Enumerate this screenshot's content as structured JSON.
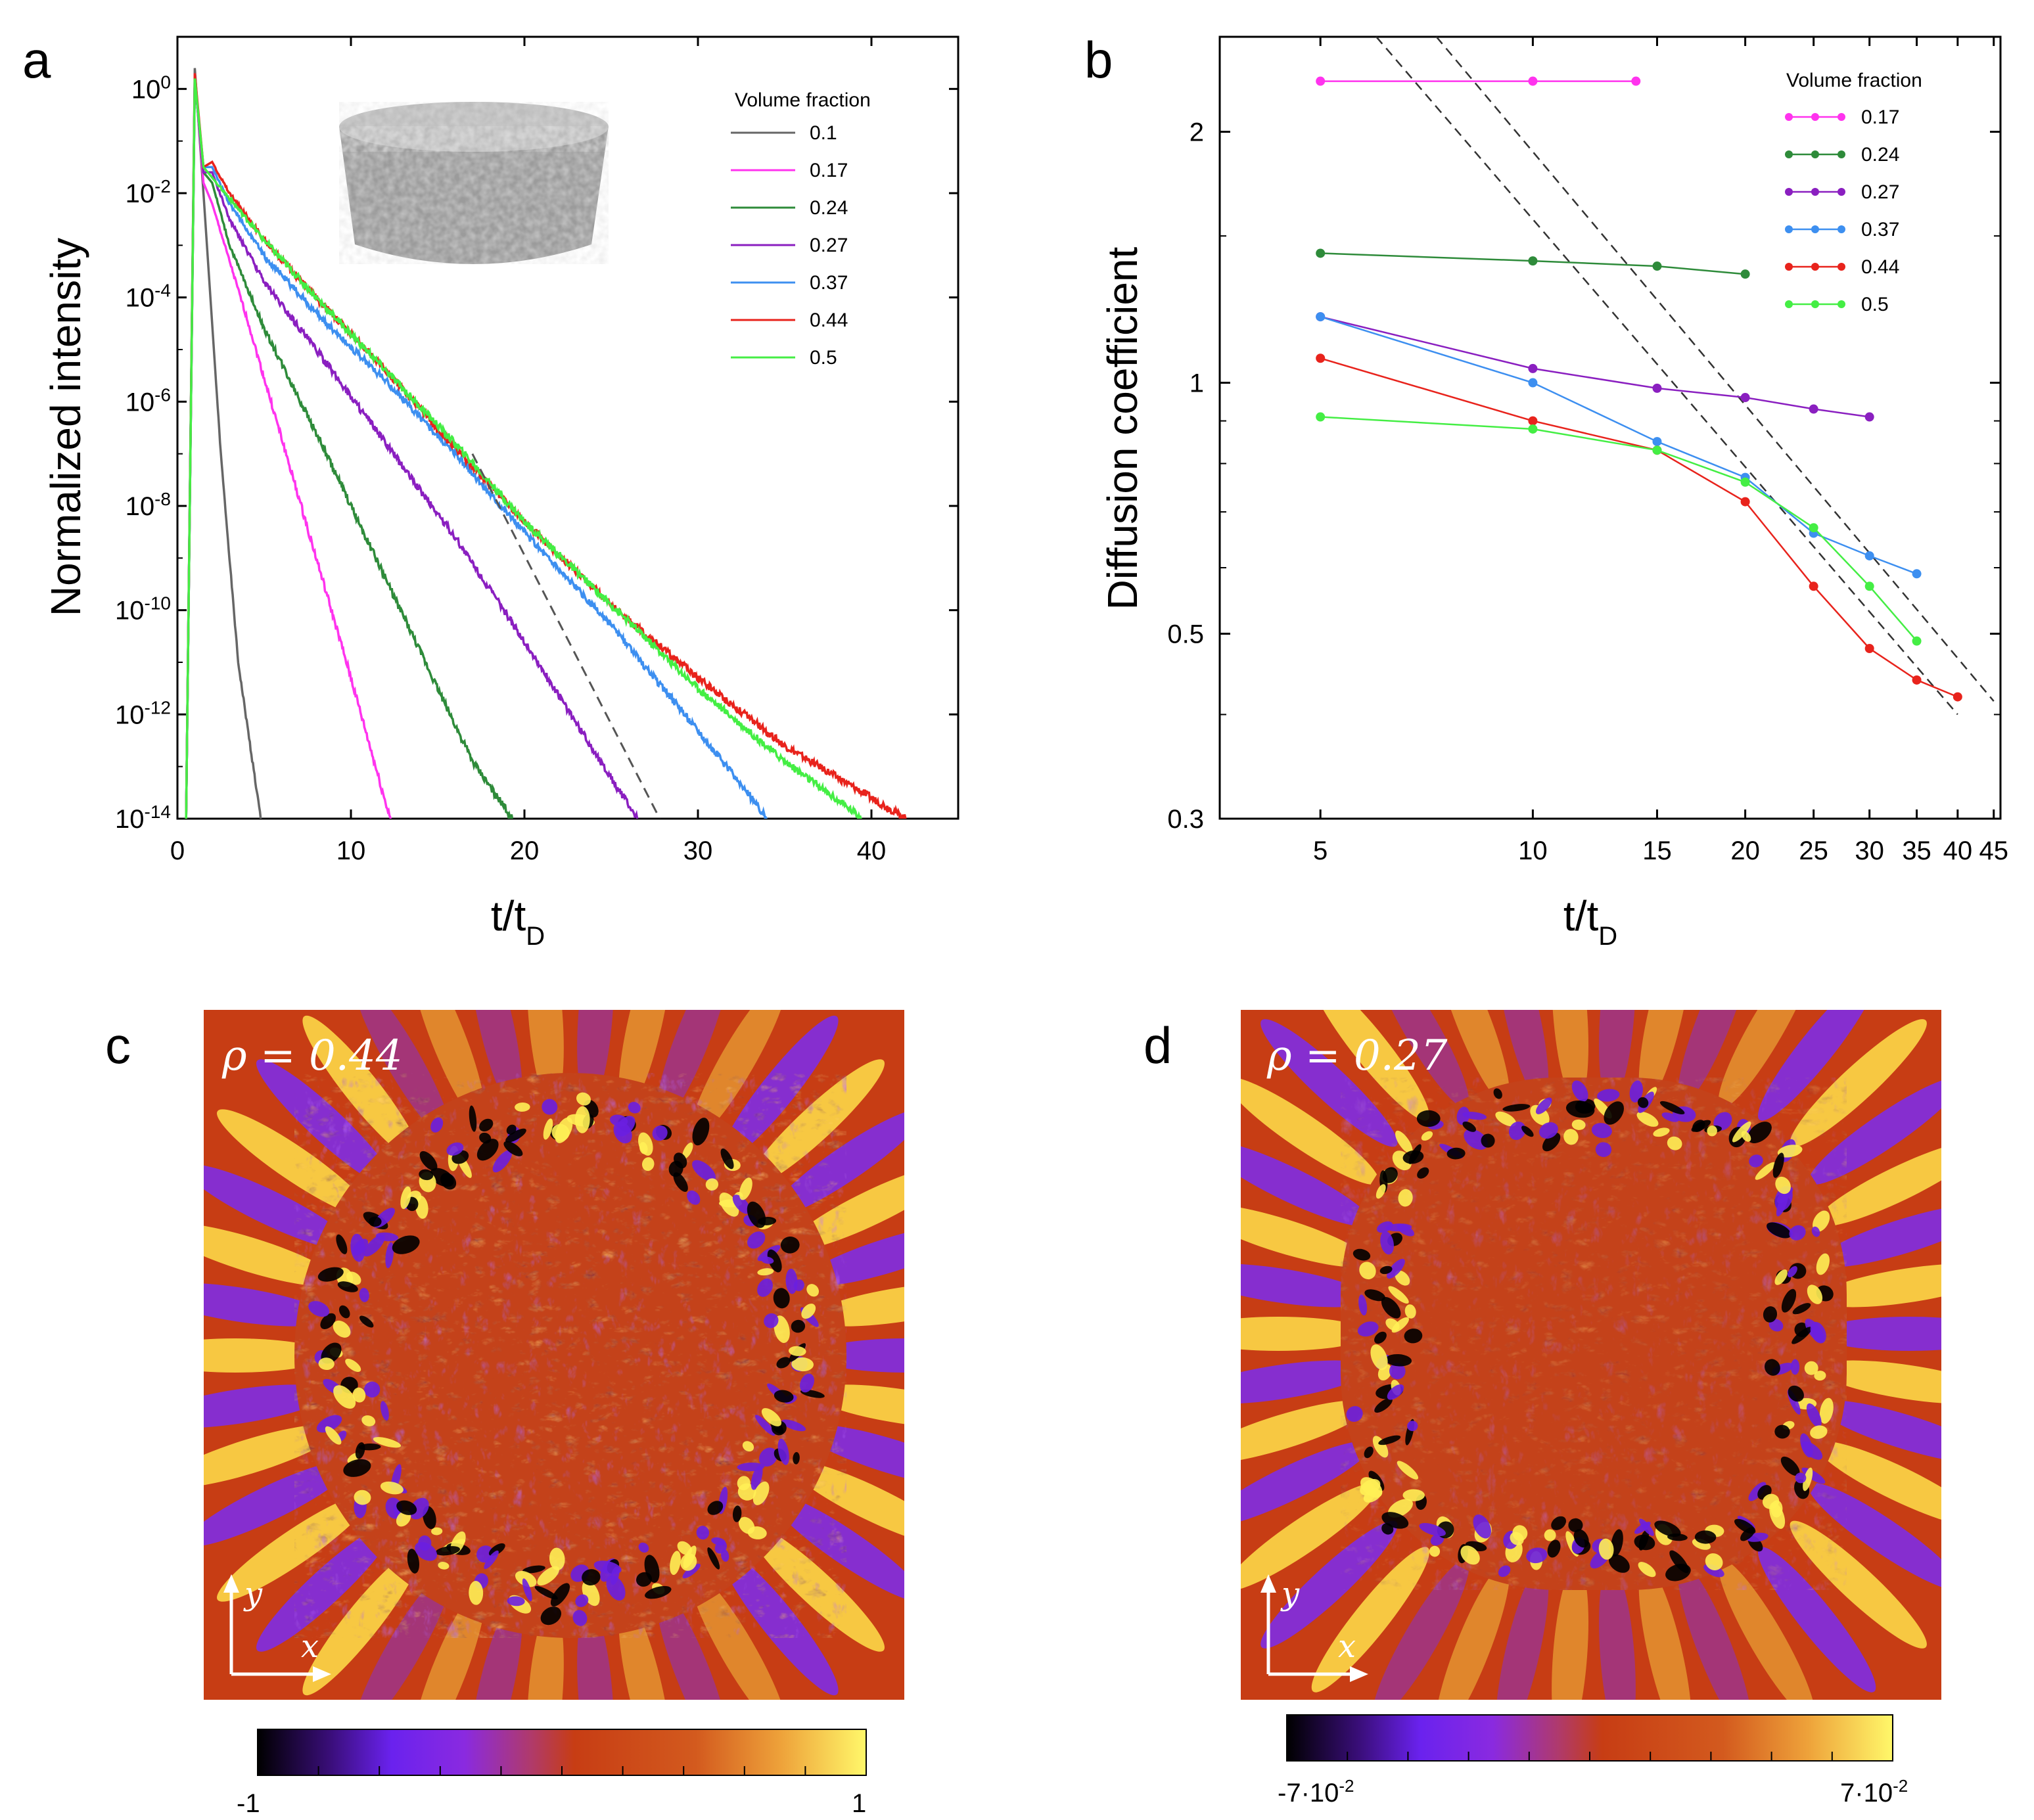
{
  "colors": {
    "0.1": "#666666",
    "0.17": "#ff33ee",
    "0.24": "#2e8b3a",
    "0.27": "#8a1fc0",
    "0.37": "#3d8ff0",
    "0.44": "#e8231c",
    "0.5": "#44ee44",
    "dashed": "#555555",
    "field_bg": "#c73d14"
  },
  "chart_data": [
    {
      "panel": "a",
      "type": "line",
      "title": "",
      "xlabel": "t/t",
      "xlabel_sub": "D",
      "ylabel": "Normalized intensity",
      "xlim": [
        0,
        45
      ],
      "ylim_log10": [
        -14,
        1
      ],
      "xticks": [
        0,
        10,
        20,
        30,
        40
      ],
      "xtick_labels": [
        "0",
        "10",
        "20",
        "30",
        "40"
      ],
      "yticks_log10": [
        0,
        -2,
        -4,
        -6,
        -8,
        -10,
        -12,
        -14
      ],
      "ytick_labels": [
        {
          "base": "10",
          "exp": "0"
        },
        {
          "base": "10",
          "exp": "-2"
        },
        {
          "base": "10",
          "exp": "-4"
        },
        {
          "base": "10",
          "exp": "-6"
        },
        {
          "base": "10",
          "exp": "-8"
        },
        {
          "base": "10",
          "exp": "-10"
        },
        {
          "base": "10",
          "exp": "-12"
        },
        {
          "base": "10",
          "exp": "-14"
        }
      ],
      "legend_title": "Volume fraction",
      "legend_position": "top-right",
      "inset": "cylindrical packed particle sample (grey render)",
      "series": [
        {
          "name": "0.1",
          "x": [
            0.5,
            1.0,
            1.5,
            2.5,
            3.5,
            4.8
          ],
          "log10y": [
            -14,
            0.4,
            -2,
            -7,
            -11,
            -14
          ]
        },
        {
          "name": "0.17",
          "x": [
            0.5,
            1.0,
            1.5,
            2,
            4,
            6,
            8,
            10,
            12,
            12.3
          ],
          "log10y": [
            -14,
            0.3,
            -1.8,
            -2.2,
            -4.4,
            -6.7,
            -9.0,
            -11.3,
            -13.7,
            -14
          ]
        },
        {
          "name": "0.24",
          "x": [
            0.5,
            1.0,
            1.5,
            2,
            3,
            5,
            8,
            11,
            14,
            17,
            19.3
          ],
          "log10y": [
            -14,
            0.2,
            -1.6,
            -1.8,
            -3.0,
            -4.6,
            -6.6,
            -8.7,
            -10.8,
            -12.9,
            -14
          ]
        },
        {
          "name": "0.27",
          "x": [
            0.5,
            1.0,
            1.5,
            2,
            3,
            5,
            8,
            12,
            16,
            20,
            24,
            26.5
          ],
          "log10y": [
            -14,
            0.2,
            -1.6,
            -1.6,
            -2.5,
            -3.7,
            -5.0,
            -6.8,
            -8.6,
            -10.6,
            -12.7,
            -14
          ]
        },
        {
          "name": "0.37",
          "x": [
            0.5,
            1.0,
            1.5,
            2,
            3,
            5,
            8,
            12,
            16,
            20,
            25,
            30,
            34
          ],
          "log10y": [
            -14,
            0.2,
            -1.5,
            -1.5,
            -2.2,
            -3.2,
            -4.3,
            -5.6,
            -7.0,
            -8.5,
            -10.3,
            -12.3,
            -14
          ]
        },
        {
          "name": "0.44",
          "x": [
            0.5,
            1.0,
            1.5,
            2,
            3,
            5,
            8,
            12,
            16,
            20,
            25,
            30,
            35,
            40,
            42
          ],
          "log10y": [
            -14,
            0.3,
            -1.5,
            -1.4,
            -2.0,
            -2.9,
            -4.0,
            -5.4,
            -6.9,
            -8.3,
            -9.9,
            -11.3,
            -12.6,
            -13.6,
            -14
          ]
        },
        {
          "name": "0.5",
          "x": [
            0.5,
            1.0,
            1.5,
            2,
            3,
            5,
            8,
            12,
            16,
            20,
            25,
            30,
            35,
            39.5
          ],
          "log10y": [
            -14,
            0.2,
            -1.5,
            -1.7,
            -2.1,
            -2.9,
            -4.0,
            -5.4,
            -6.8,
            -8.3,
            -9.9,
            -11.5,
            -12.9,
            -14
          ]
        }
      ],
      "reference_line": {
        "x": [
          17,
          27.8
        ],
        "log10y": [
          -7,
          -14
        ]
      }
    },
    {
      "panel": "b",
      "type": "line",
      "title": "",
      "xlabel": "t/t",
      "xlabel_sub": "D",
      "ylabel": "Diffusion coefficient",
      "xscale": "log",
      "yscale": "log",
      "xlim": [
        3.6,
        46
      ],
      "ylim": [
        0.3,
        2.6
      ],
      "xticks": [
        5,
        10,
        15,
        20,
        25,
        30,
        35,
        40,
        45
      ],
      "xtick_labels": [
        "5",
        "10",
        "15",
        "20",
        "25",
        "30",
        "35",
        "40",
        "45"
      ],
      "yticks": [
        0.5,
        1,
        2
      ],
      "ytick_labels": [
        "0.3",
        "0.5",
        "1",
        "2"
      ],
      "ytick_label_values": [
        0.3,
        0.5,
        1,
        2
      ],
      "legend_title": "Volume fraction",
      "legend_position": "top-right",
      "series": [
        {
          "name": "0.17",
          "x": [
            5,
            10,
            14
          ],
          "y": [
            2.3,
            2.3,
            2.3
          ]
        },
        {
          "name": "0.24",
          "x": [
            5,
            10,
            15,
            20
          ],
          "y": [
            1.43,
            1.4,
            1.38,
            1.35
          ]
        },
        {
          "name": "0.27",
          "x": [
            5,
            10,
            20,
            25,
            30
          ],
          "y": [
            1.2,
            1.04,
            0.96,
            0.93,
            0.91
          ],
          "x_full": [
            5,
            10,
            15,
            20,
            25,
            30
          ],
          "y_full": [
            1.2,
            1.04,
            0.985,
            0.96,
            0.93,
            0.91
          ]
        },
        {
          "name": "0.37",
          "x": [
            5,
            10,
            15,
            20,
            25,
            30,
            35
          ],
          "y": [
            1.2,
            1.0,
            0.85,
            0.77,
            0.66,
            0.62,
            0.59
          ]
        },
        {
          "name": "0.44",
          "x": [
            5,
            10,
            15,
            20,
            25,
            30,
            35,
            40
          ],
          "y": [
            1.07,
            0.9,
            0.83,
            0.72,
            0.57,
            0.48,
            0.44,
            0.42
          ]
        },
        {
          "name": "0.5",
          "x": [
            5,
            10,
            15,
            20,
            25,
            30,
            35
          ],
          "y": [
            0.91,
            0.88,
            0.83,
            0.76,
            0.67,
            0.57,
            0.49
          ]
        }
      ],
      "reference_lines": [
        {
          "x": [
            6.0,
            40.0
          ],
          "y": [
            2.6,
            0.4
          ]
        },
        {
          "x": [
            7.3,
            45.0
          ],
          "y": [
            2.6,
            0.415
          ]
        }
      ]
    },
    {
      "panel": "c",
      "type": "heatmap",
      "annotation": "ρ = 0.44",
      "axis_x": "x",
      "axis_y": "y",
      "colorbar_min": "-1",
      "colorbar_max": "1",
      "colorbar_range": [
        -1,
        1
      ]
    },
    {
      "panel": "d",
      "type": "heatmap",
      "annotation": "ρ = 0.27",
      "axis_x": "x",
      "axis_y": "y",
      "colorbar_min": "-7·10",
      "colorbar_min_exp": "-2",
      "colorbar_max": "7·10",
      "colorbar_max_exp": "-2",
      "colorbar_range": [
        -0.07,
        0.07
      ]
    }
  ],
  "panel_labels": [
    "a",
    "b",
    "c",
    "d"
  ]
}
